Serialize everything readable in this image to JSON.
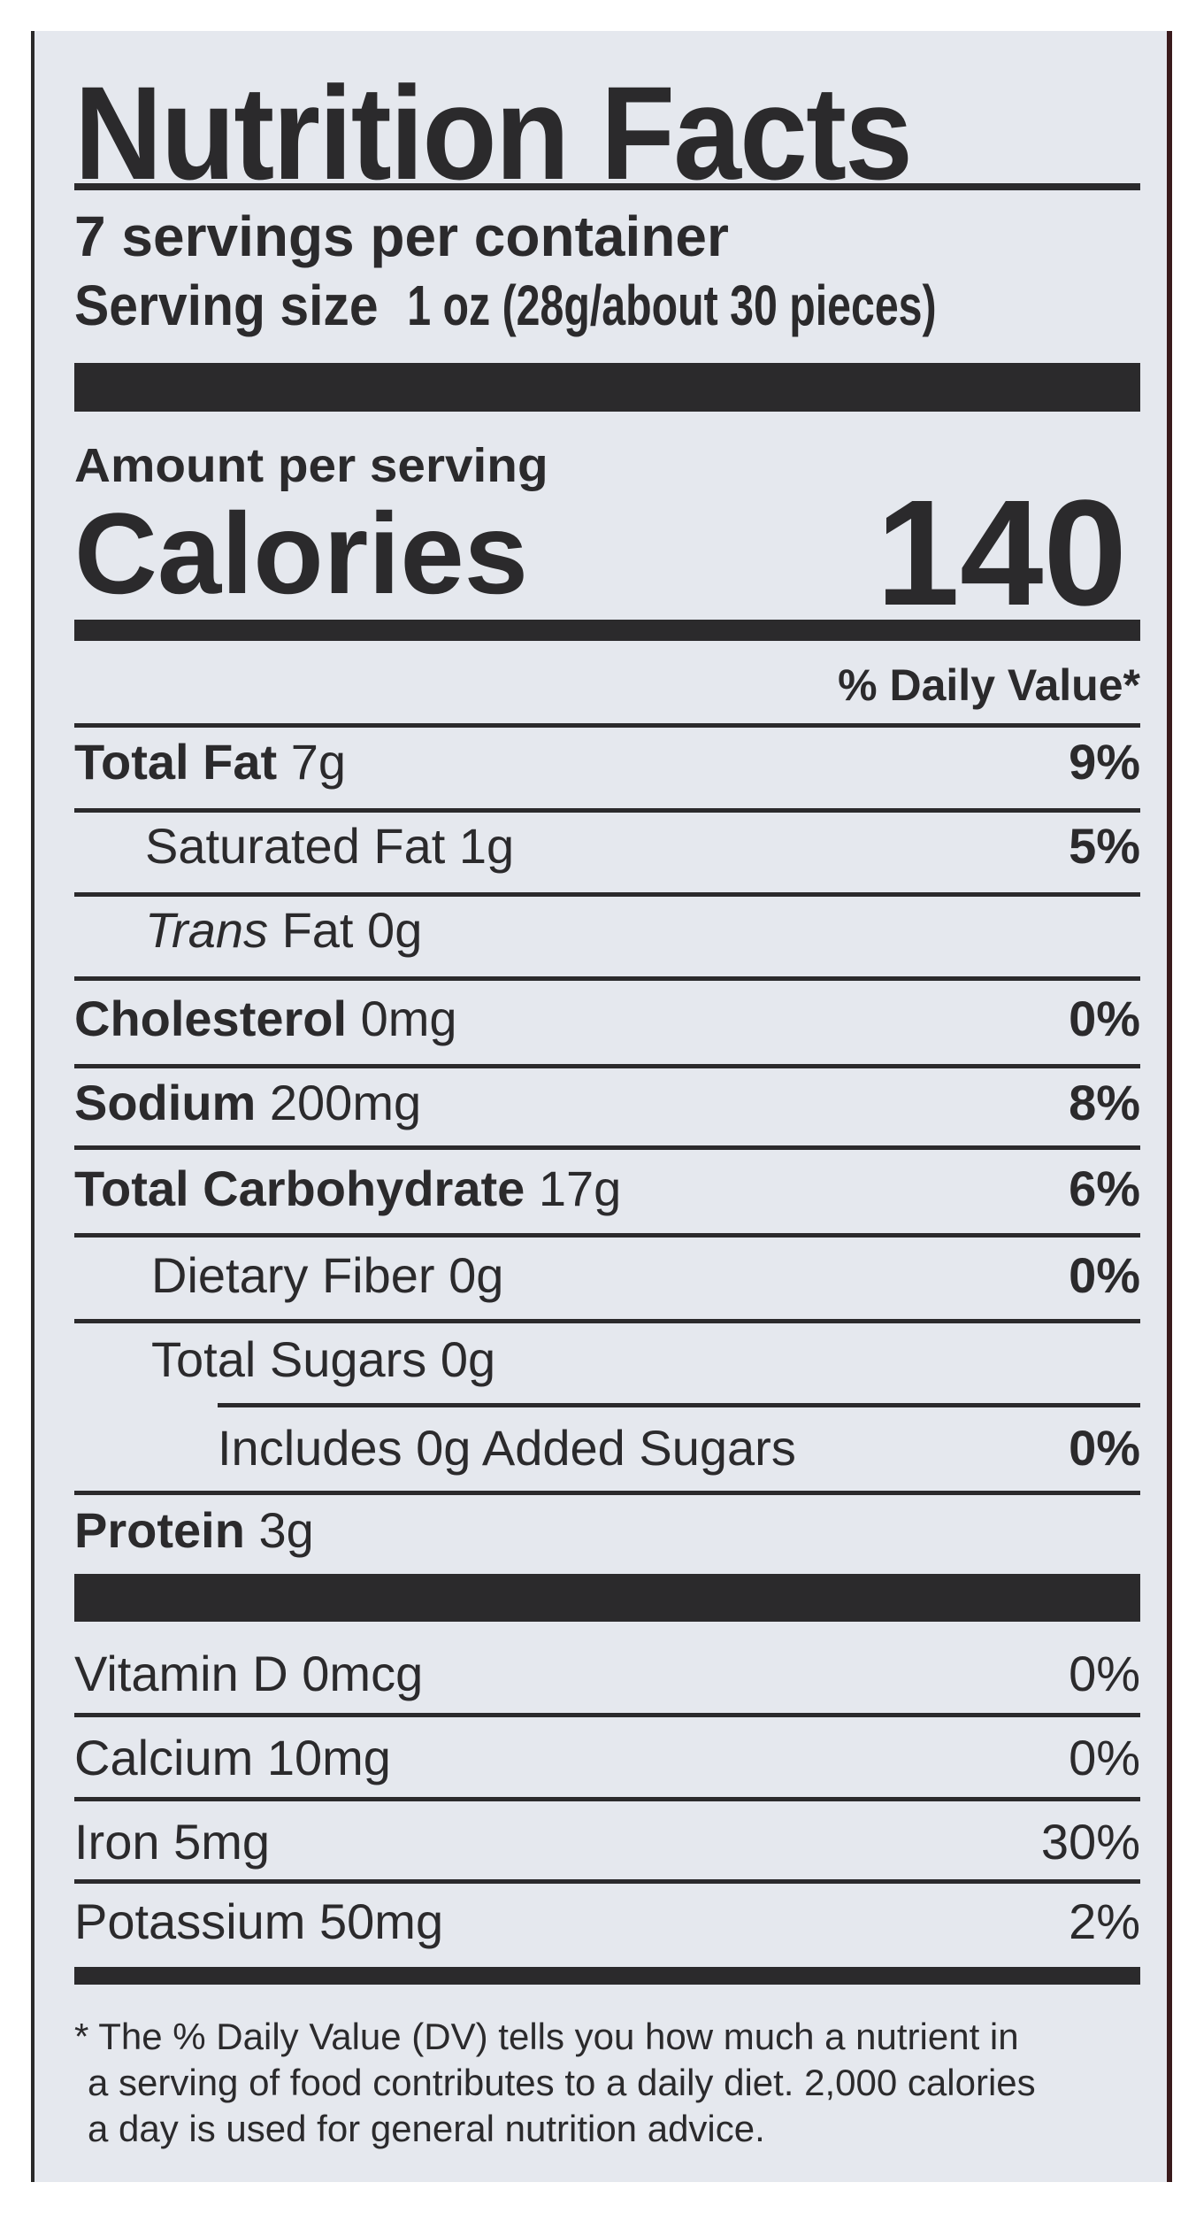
{
  "title": "Nutrition Facts",
  "servings_per_container": "7 servings per container",
  "serving_size_label": "Serving size",
  "serving_size_value": "1 oz (28g/about 30 pieces)",
  "amount_per_serving": "Amount per serving",
  "calories_label": "Calories",
  "calories_value": "140",
  "daily_value_header": "% Daily Value*",
  "nutrients": [
    {
      "name": "Total Fat",
      "amount": "7g",
      "dv": "9%"
    },
    {
      "name": "Saturated Fat",
      "amount": "1g",
      "dv": "5%"
    },
    {
      "name": "Trans",
      "name_suffix": "Fat",
      "amount": "0g",
      "dv": ""
    },
    {
      "name": "Cholesterol",
      "amount": "0mg",
      "dv": "0%"
    },
    {
      "name": "Sodium",
      "amount": "200mg",
      "dv": "8%"
    },
    {
      "name": "Total Carbohydrate",
      "amount": "17g",
      "dv": "6%"
    },
    {
      "name": "Dietary Fiber",
      "amount": "0g",
      "dv": "0%"
    },
    {
      "name": "Total Sugars",
      "amount": "0g",
      "dv": ""
    },
    {
      "name": "Includes 0g Added Sugars",
      "amount": "",
      "dv": "0%"
    },
    {
      "name": "Protein",
      "amount": "3g",
      "dv": ""
    }
  ],
  "vitamins": [
    {
      "name": "Vitamin D",
      "amount": "0mcg",
      "dv": "0%"
    },
    {
      "name": "Calcium",
      "amount": "10mg",
      "dv": "0%"
    },
    {
      "name": "Iron",
      "amount": "5mg",
      "dv": "30%"
    },
    {
      "name": "Potassium",
      "amount": "50mg",
      "dv": "2%"
    }
  ],
  "footnote": [
    "* The % Daily Value (DV) tells you how much a nutrient in",
    "a serving of food contributes to a daily diet. 2,000 calories",
    "a day is used for general nutrition advice."
  ]
}
